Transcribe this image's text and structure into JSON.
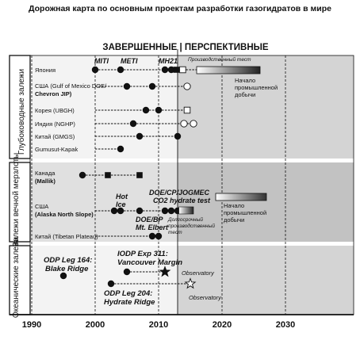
{
  "chart_data": {
    "type": "scatter",
    "title": "Дорожная карта по основным проектам разработки газогидратов в мире",
    "header": "ЗАВЕРШЕННЫЕ | ПЕРСПЕКТИВНЫЕ",
    "xlim": [
      1987,
      2040
    ],
    "x_ticks": [
      1990,
      2000,
      2010,
      2020,
      2030
    ],
    "current_year_divider": 2013,
    "sections": [
      {
        "id": "deep",
        "label": "Глубоководные залежи"
      },
      {
        "id": "perm",
        "label": "Залежи вечной мерзлоты"
      },
      {
        "id": "ocean",
        "label": "Океанические залежи"
      }
    ],
    "rows": [
      {
        "section": "deep",
        "label": "Япония",
        "label2": "",
        "points": [
          {
            "x": 2000,
            "m": "dot"
          },
          {
            "x": 2004,
            "m": "dot"
          },
          {
            "x": 2011,
            "m": "dot"
          },
          {
            "x": 2012,
            "m": "dot"
          },
          {
            "x": 2012.8,
            "m": "sq"
          },
          {
            "x": 2013.8,
            "m": "osq"
          }
        ]
      },
      {
        "section": "deep",
        "label": "США (Gulf of Mexico DOE/",
        "label2": "Chevron JIP)",
        "points": [
          {
            "x": 2005,
            "m": "dot"
          },
          {
            "x": 2009,
            "m": "dot"
          },
          {
            "x": 2014.5,
            "m": "ocircle"
          }
        ]
      },
      {
        "section": "deep",
        "label": "Корея (UBGH)",
        "label2": "",
        "points": [
          {
            "x": 2008,
            "m": "dot"
          },
          {
            "x": 2010,
            "m": "dot"
          },
          {
            "x": 2014.5,
            "m": "osq"
          }
        ]
      },
      {
        "section": "deep",
        "label": "Индия (NGHP)",
        "label2": "",
        "points": [
          {
            "x": 2006,
            "m": "dot"
          },
          {
            "x": 2014,
            "m": "ocircle"
          },
          {
            "x": 2015.5,
            "m": "ocircle"
          }
        ]
      },
      {
        "section": "deep",
        "label": "Китай (GMGS)",
        "label2": "",
        "points": [
          {
            "x": 2007,
            "m": "dot"
          },
          {
            "x": 2013,
            "m": "dot"
          }
        ]
      },
      {
        "section": "deep",
        "label": "Gumusut-Kapak",
        "label2": "",
        "points": [
          {
            "x": 2004,
            "m": "dot"
          }
        ]
      },
      {
        "section": "perm",
        "label": "Канада",
        "label2": "(Mallik)",
        "points": [
          {
            "x": 1998,
            "m": "dot"
          },
          {
            "x": 2002,
            "m": "sq"
          },
          {
            "x": 2007,
            "m": "sq"
          }
        ]
      },
      {
        "section": "perm",
        "label": "США",
        "label2": "(Alaska North Slope)",
        "points": [
          {
            "x": 2003,
            "m": "dot"
          },
          {
            "x": 2004,
            "m": "dot"
          },
          {
            "x": 2007,
            "m": "dot"
          },
          {
            "x": 2011,
            "m": "dot"
          },
          {
            "x": 2012,
            "m": "dot"
          },
          {
            "x": 2013,
            "m": "dot"
          }
        ]
      },
      {
        "section": "perm",
        "label": "Китай (Tibetan Plateau)",
        "label2": "",
        "points": [
          {
            "x": 2009,
            "m": "dot"
          },
          {
            "x": 2010,
            "m": "dot"
          }
        ]
      },
      {
        "section": "ocean",
        "label": "",
        "label2": "",
        "points": [
          {
            "x": 1995,
            "m": "dot"
          }
        ]
      },
      {
        "section": "ocean",
        "label": "",
        "label2": "",
        "points": [
          {
            "x": 2005,
            "m": "dot"
          },
          {
            "x": 2011,
            "m": "star"
          }
        ]
      },
      {
        "section": "ocean",
        "label": "",
        "label2": "",
        "points": [
          {
            "x": 2002.5,
            "m": "dot"
          },
          {
            "x": 2015,
            "m": "ostar"
          }
        ]
      }
    ],
    "annotations": {
      "miti": "MITI",
      "meti": "METI",
      "mh21": "MH21",
      "production_test": "Производственный тест",
      "start_production": [
        "Начало",
        "промышленной",
        "добычи"
      ],
      "hot_ice": [
        "Hot",
        "Ice"
      ],
      "doe_cp": [
        "DOE/CP/JOGMEC",
        "CO2 hydrate test"
      ],
      "doe_bp": [
        "DOE/BP",
        "Mt. Elbert"
      ],
      "long_test": [
        "Долгосрочный",
        "производственный",
        "тест"
      ],
      "odp164": [
        "ODP Leg 164:",
        "Blake Ridge"
      ],
      "iodp311": [
        "IODP Exp 311:",
        "Vancouver Margin"
      ],
      "observatory1": "Observatory",
      "odp204": [
        "ODP Leg 204:",
        "Hydrate Ridge"
      ],
      "observatory2": "Observatory"
    },
    "colors": {
      "band_light": "#f3f3f3",
      "band_dark": "#e0e0e0",
      "future_light": "#d4d4d4",
      "future_dark": "#c2c2c2",
      "ink": "#111111"
    }
  }
}
